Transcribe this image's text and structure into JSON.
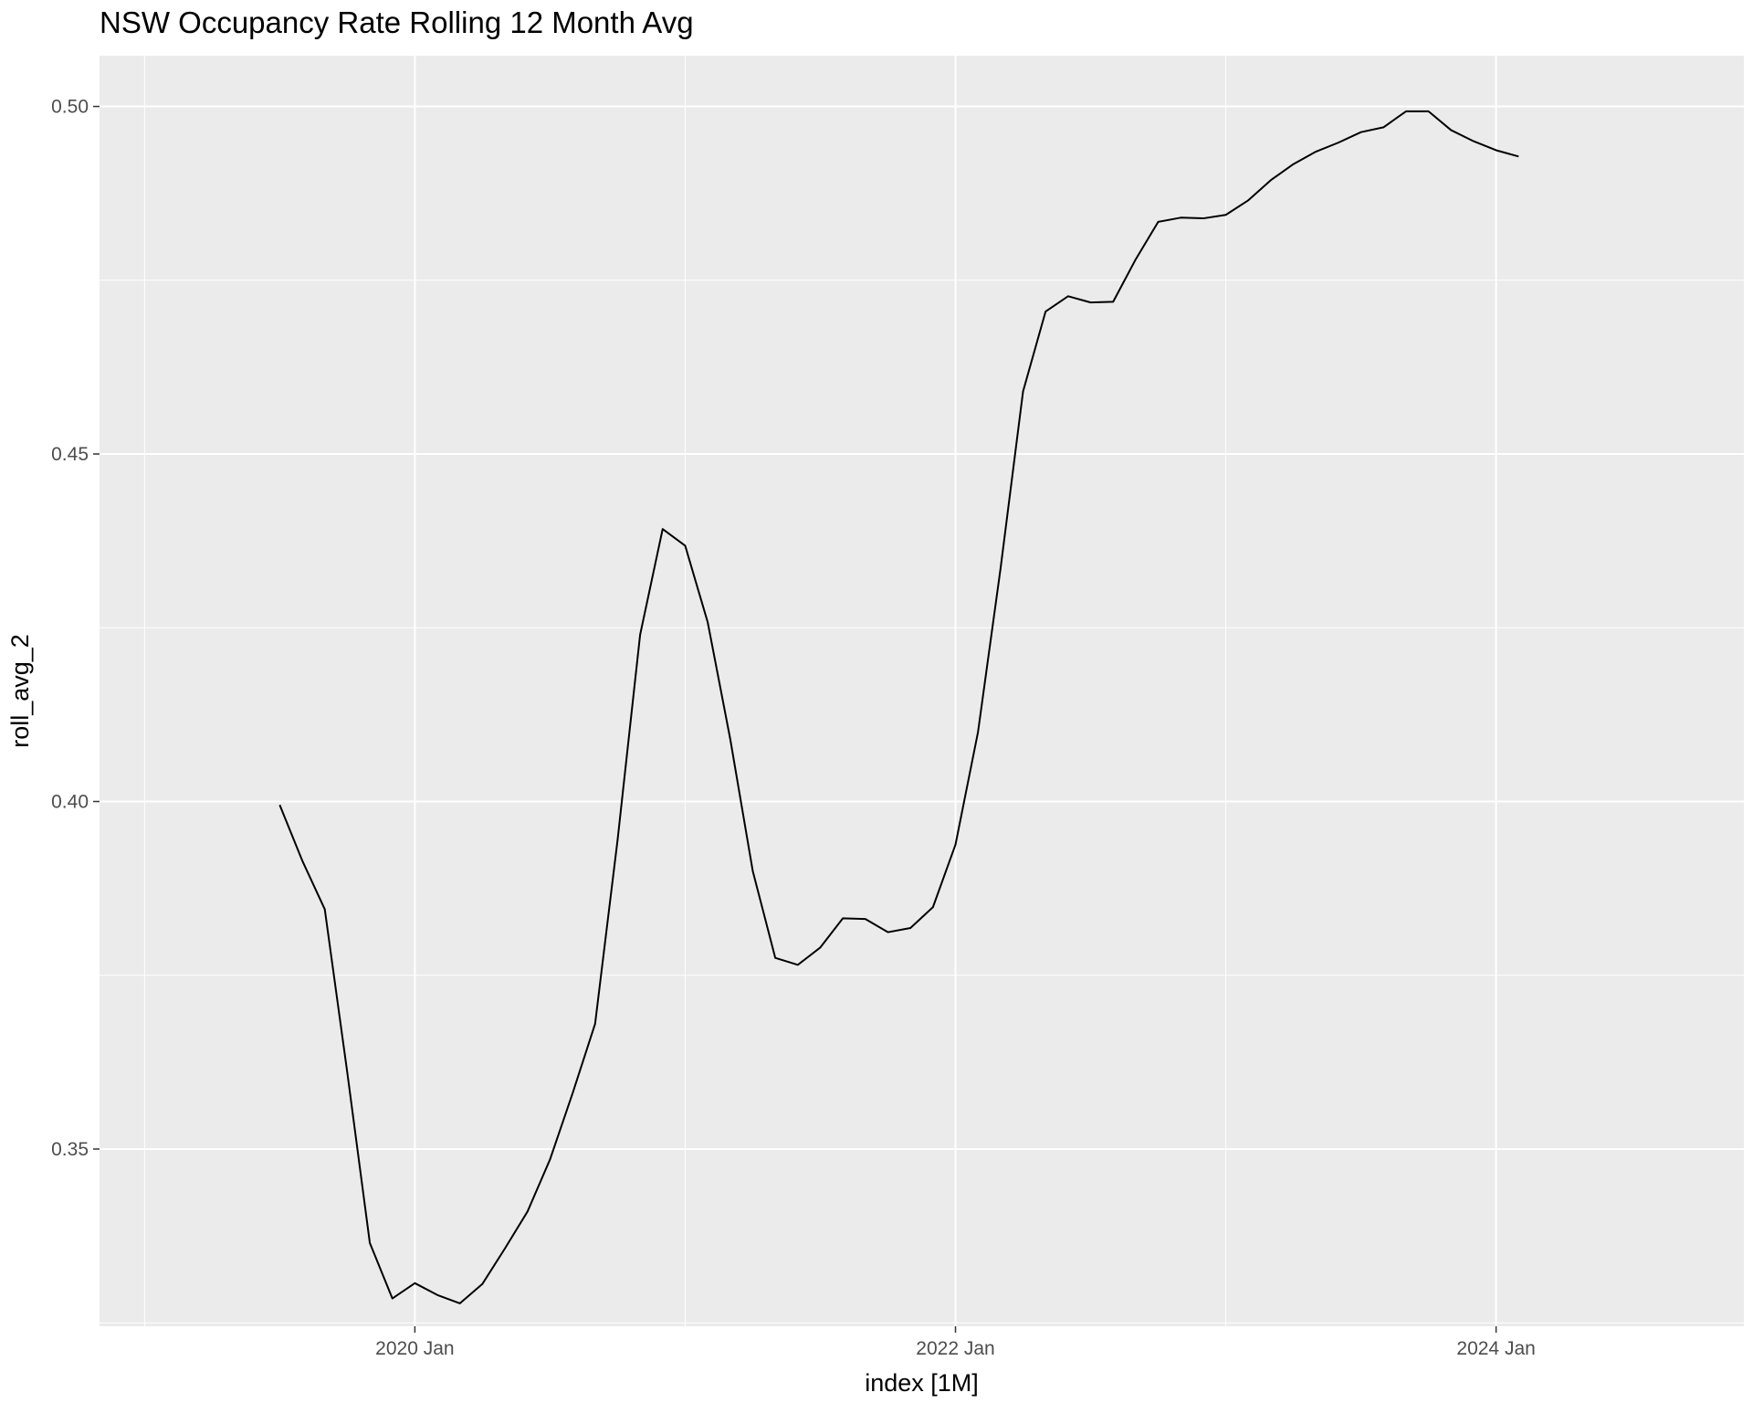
{
  "chart_data": {
    "type": "line",
    "title": "NSW Occupancy Rate Rolling 12 Month Avg",
    "xlabel": "index [1M]",
    "ylabel": "roll_avg_2",
    "xlim": [
      "2018-11",
      "2024-12"
    ],
    "ylim": [
      0.3245,
      0.5073
    ],
    "x_ticks": [
      {
        "value": "2020-01",
        "label": "2020 Jan"
      },
      {
        "value": "2022-01",
        "label": "2022 Jan"
      },
      {
        "value": "2024-01",
        "label": "2024 Jan"
      }
    ],
    "y_ticks": [
      {
        "value": 0.35,
        "label": "0.35"
      },
      {
        "value": 0.4,
        "label": "0.40"
      },
      {
        "value": 0.45,
        "label": "0.45"
      },
      {
        "value": 0.5,
        "label": "0.50"
      }
    ],
    "grid": true,
    "legend": "none",
    "series": [
      {
        "color": "#000000",
        "x": [
          "2019-07",
          "2019-08",
          "2019-09",
          "2019-10",
          "2019-11",
          "2019-12",
          "2020-01",
          "2020-02",
          "2020-03",
          "2020-04",
          "2020-05",
          "2020-06",
          "2020-07",
          "2020-08",
          "2020-09",
          "2020-10",
          "2020-11",
          "2020-12",
          "2021-01",
          "2021-02",
          "2021-03",
          "2021-04",
          "2021-05",
          "2021-06",
          "2021-07",
          "2021-08",
          "2021-09",
          "2021-10",
          "2021-11",
          "2021-12",
          "2022-01",
          "2022-02",
          "2022-03",
          "2022-04",
          "2022-05",
          "2022-06",
          "2022-07",
          "2022-08",
          "2022-09",
          "2022-10",
          "2022-11",
          "2022-12",
          "2023-01",
          "2023-02",
          "2023-03",
          "2023-04",
          "2023-05",
          "2023-06",
          "2023-07",
          "2023-08",
          "2023-09",
          "2023-10",
          "2023-11",
          "2023-12",
          "2024-01",
          "2024-02"
        ],
        "values": [
          0.3995,
          0.3915,
          0.3845,
          0.361,
          0.3365,
          0.3285,
          0.3307,
          0.329,
          0.3278,
          0.3306,
          0.3357,
          0.341,
          0.3485,
          0.358,
          0.368,
          0.3945,
          0.424,
          0.4392,
          0.4368,
          0.4258,
          0.409,
          0.39,
          0.3775,
          0.3765,
          0.379,
          0.3832,
          0.3831,
          0.3812,
          0.3818,
          0.3848,
          0.3938,
          0.41,
          0.4335,
          0.459,
          0.4705,
          0.4727,
          0.4718,
          0.4719,
          0.478,
          0.4834,
          0.484,
          0.4839,
          0.4844,
          0.4865,
          0.4894,
          0.4917,
          0.4935,
          0.4948,
          0.4963,
          0.497,
          0.4993,
          0.4993,
          0.4966,
          0.495,
          0.4937,
          0.4928
        ]
      }
    ]
  }
}
